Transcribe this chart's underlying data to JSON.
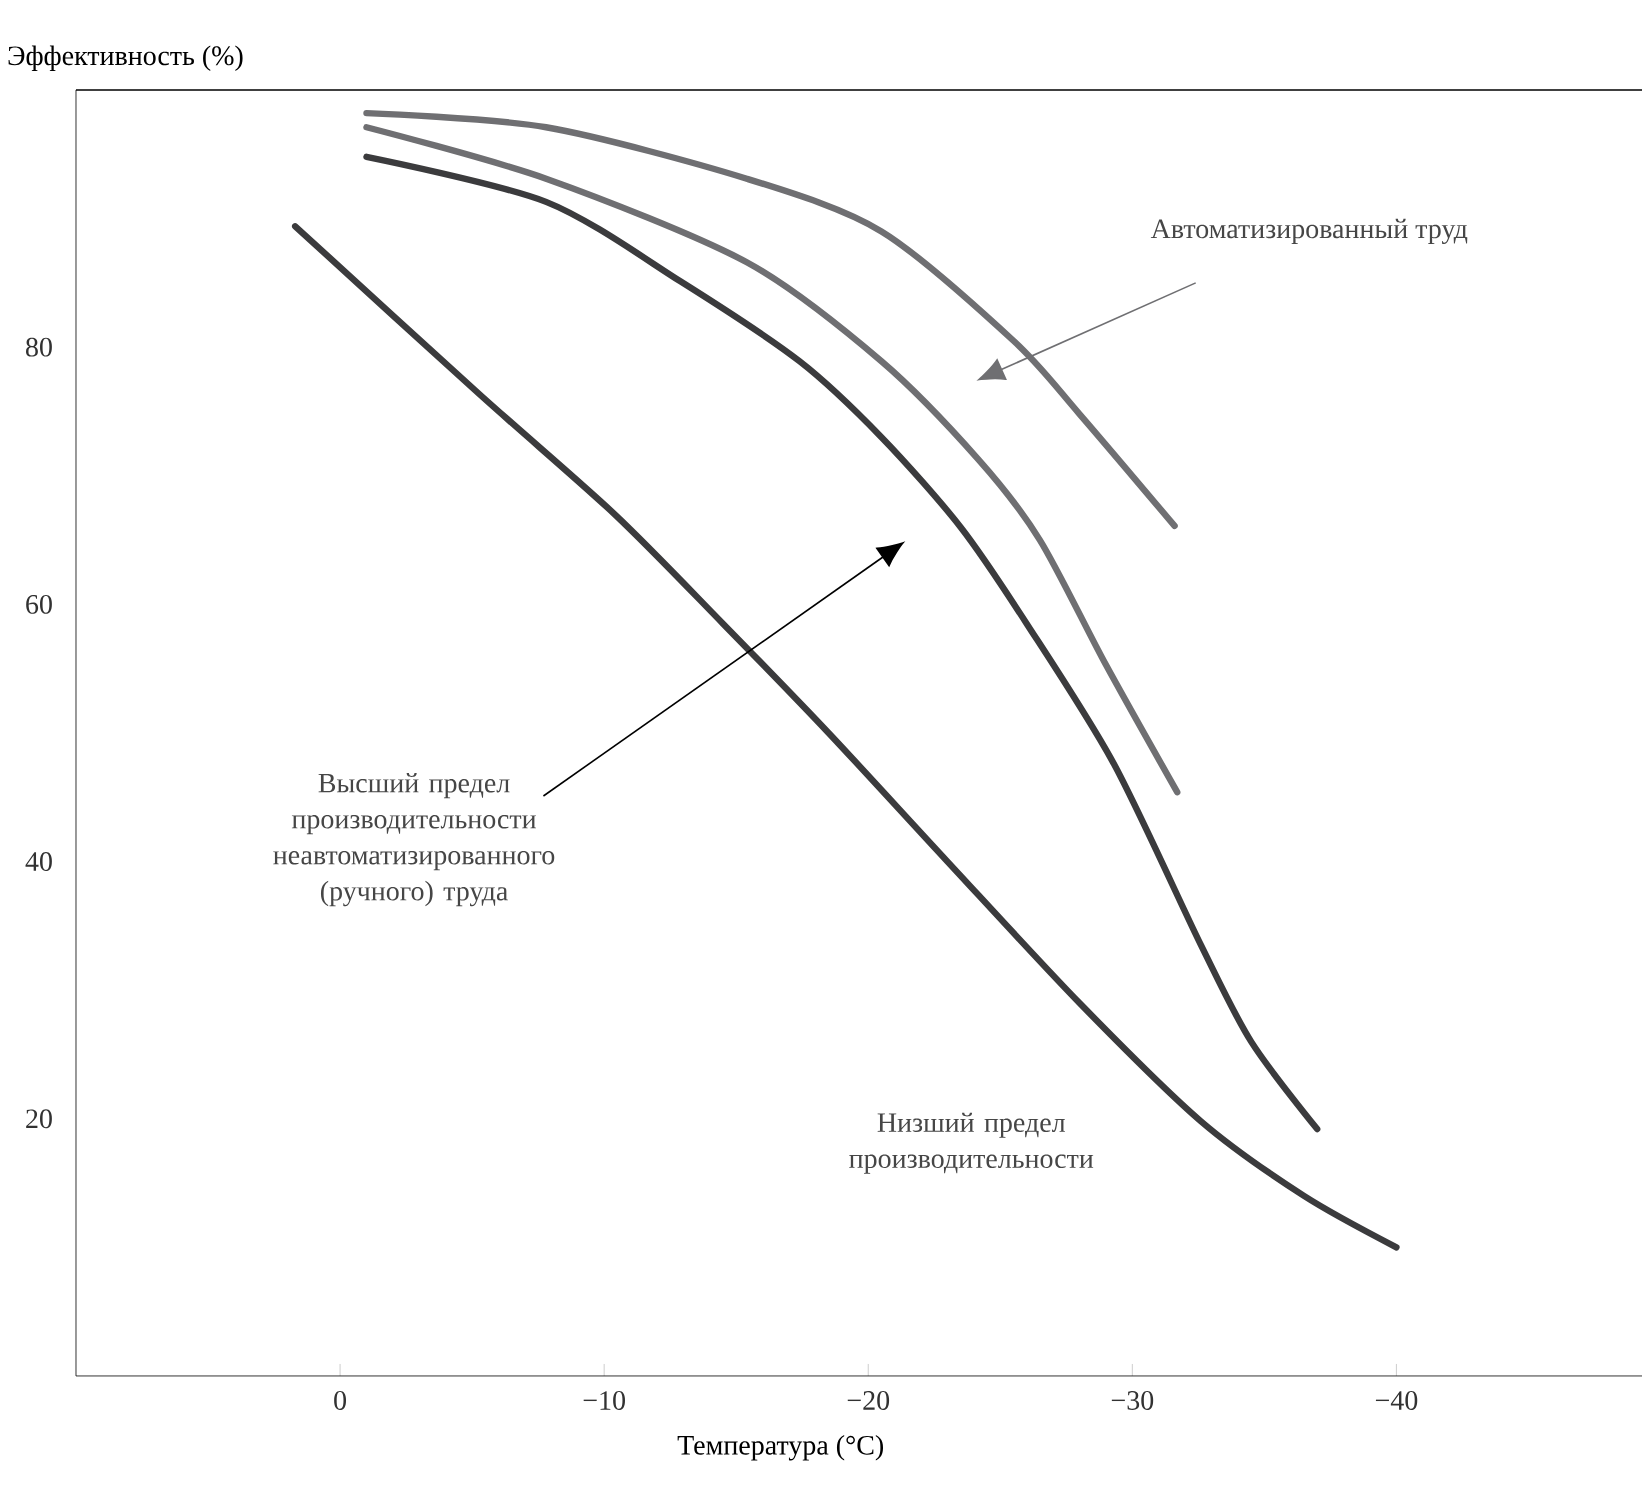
{
  "chart_data": {
    "type": "line",
    "xlabel": "Температура (°C)",
    "ylabel": "Эффективность (%)",
    "xlim": [
      10.0,
      -49.3
    ],
    "ylim": [
      0,
      100
    ],
    "xticks": [
      0,
      {
        "value": -10,
        "label": "−10"
      },
      {
        "value": -20,
        "label": "−20"
      },
      {
        "value": -30,
        "label": "−30"
      },
      {
        "value": -40,
        "label": "−40"
      }
    ],
    "yticks": [
      20,
      40,
      60,
      80
    ],
    "grid": false,
    "marker": "none",
    "line_style": "solid",
    "annotations": [
      "Автоматизированный труд",
      "Высший предел производительности неавтоматизированного (ручного) труда",
      "Низший предел производительности"
    ],
    "series": [
      {
        "color": "#6f6f72",
        "x": [
          -1.0,
          -7.8,
          -15.4,
          -20.5,
          -25.5,
          -28.0,
          -31.6
        ],
        "values": [
          98.2,
          97.1,
          93.1,
          89.0,
          80.5,
          74.8,
          66.1
        ]
      },
      {
        "color": "#6f6f72",
        "x": [
          -1.0,
          -7.8,
          -15.4,
          -20.5,
          -24.2,
          -26.5,
          -29.0,
          -31.7
        ],
        "values": [
          97.1,
          93.1,
          86.6,
          78.9,
          71.2,
          65.0,
          55.3,
          45.4
        ]
      },
      {
        "color": "#3b3b3d",
        "x": [
          -1.0,
          -7.8,
          -12.9,
          -17.4,
          -20.5,
          -23.5,
          -26.0,
          -29.3,
          -32.6,
          -34.5,
          -37.0
        ],
        "values": [
          94.8,
          91.3,
          85.1,
          78.9,
          73.0,
          66.0,
          58.5,
          47.6,
          33.5,
          26.0,
          19.2
        ]
      },
      {
        "color": "#3b3b3d",
        "x": [
          1.7,
          -5.3,
          -10.4,
          -14.5,
          -18.5,
          -23.0,
          -28.0,
          -32.6,
          -36.5,
          -40.0
        ],
        "values": [
          89.4,
          76.3,
          67.0,
          58.5,
          50.0,
          40.0,
          29.0,
          19.8,
          14.0,
          10.0
        ]
      }
    ]
  }
}
